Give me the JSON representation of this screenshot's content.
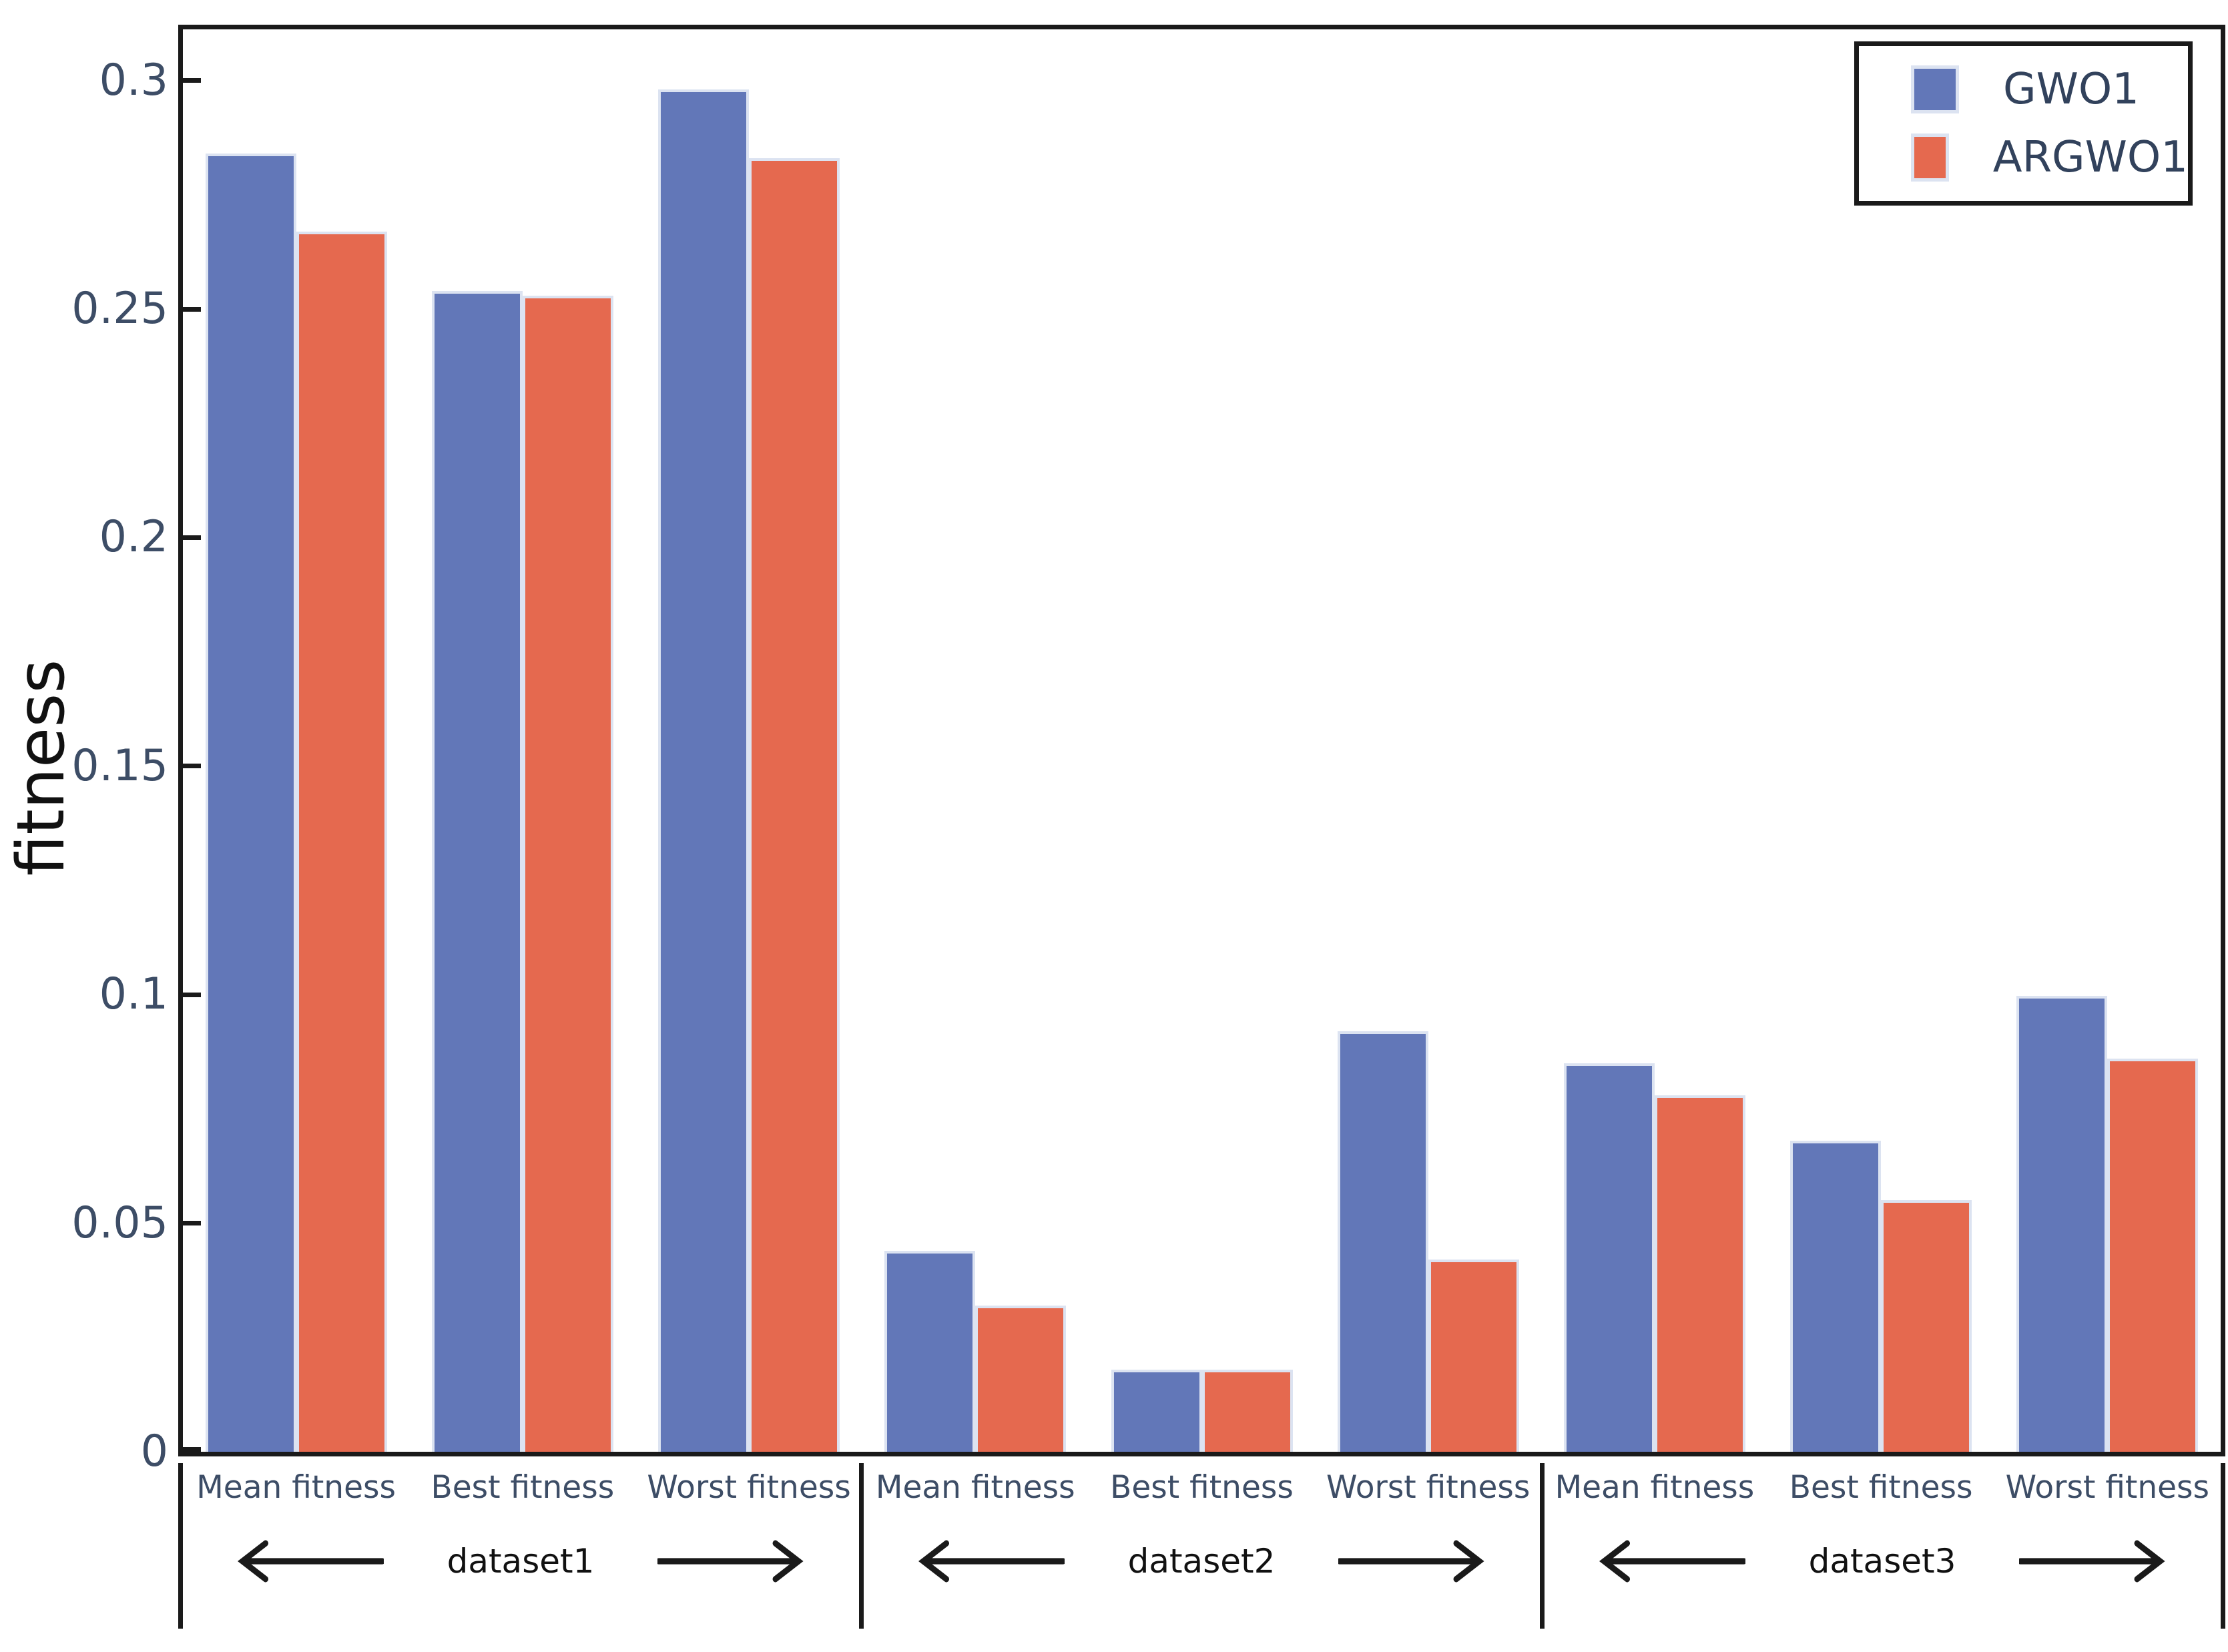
{
  "chart_data": {
    "type": "bar",
    "title": "",
    "xlabel": "",
    "ylabel": "fitness",
    "ylim": [
      0,
      0.3112
    ],
    "yticks": [
      0,
      0.05,
      0.1,
      0.15,
      0.2,
      0.25,
      0.3
    ],
    "ytick_labels": [
      "0",
      "0.05",
      "0.1",
      "0.15",
      "0.2",
      "0.25",
      "0.3"
    ],
    "grid": false,
    "legend_position": "upper right",
    "categories": [
      "Mean fitness",
      "Best fitness",
      "Worst fitness",
      "Mean fitness",
      "Best fitness",
      "Worst fitness",
      "Mean fitness",
      "Best fitness",
      "Worst fitness"
    ],
    "series": [
      {
        "name": "GWO1",
        "color": "#6277b8",
        "values": [
          0.284,
          0.254,
          0.298,
          0.044,
          0.018,
          0.092,
          0.085,
          0.068,
          0.0997
        ]
      },
      {
        "name": "ARGWO1",
        "color": "#e5694f",
        "values": [
          0.267,
          0.253,
          0.283,
          0.032,
          0.018,
          0.042,
          0.078,
          0.055,
          0.086
        ]
      }
    ],
    "group_annotations": [
      {
        "label": "dataset1",
        "span": [
          0,
          2
        ]
      },
      {
        "label": "dataset2",
        "span": [
          3,
          5
        ]
      },
      {
        "label": "dataset3",
        "span": [
          6,
          8
        ]
      }
    ]
  },
  "colors": {
    "bar_blue": "#6277b8",
    "bar_red": "#e5694f",
    "bar_edge": "#dce3f1",
    "axis_text": "#3d4d66",
    "legend_text": "#32425c",
    "dataset_text": "#111111",
    "spine": "#1a1a1a",
    "background": "#ffffff"
  }
}
